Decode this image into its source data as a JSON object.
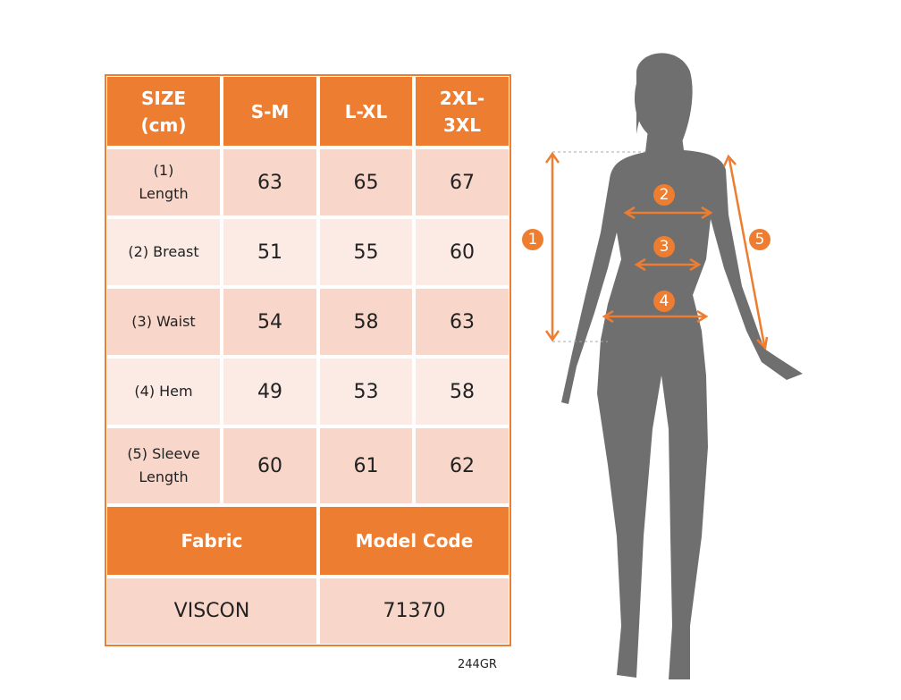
{
  "table": {
    "header": [
      "SIZE (cm)",
      "S-M",
      "L-XL",
      "2XL-3XL"
    ],
    "rows": [
      [
        "(1) Length",
        63,
        65,
        67
      ],
      [
        "(2) Breast",
        51,
        55,
        60
      ],
      [
        "(3) Waist",
        54,
        58,
        63
      ],
      [
        "(4) Hem",
        49,
        53,
        58
      ],
      [
        "(5) Sleeve Length",
        60,
        61,
        62
      ]
    ],
    "footer_header": [
      "Fabric",
      "Model Code"
    ],
    "footer_values": [
      "VISCON",
      71370
    ]
  },
  "code": "244GR",
  "diagram": {
    "labels": [
      "1",
      "2",
      "3",
      "4",
      "5"
    ]
  }
}
